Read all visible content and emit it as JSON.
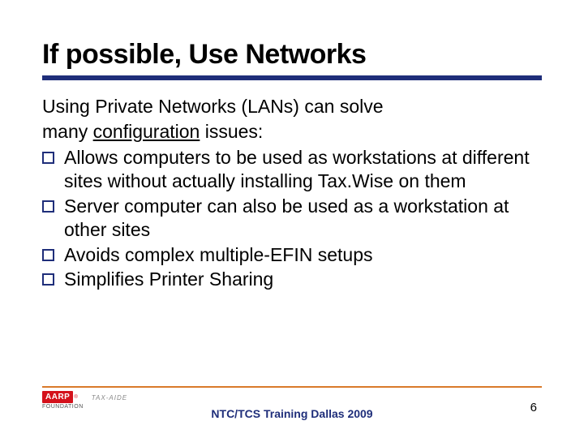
{
  "title": "If possible, Use Networks",
  "intro_line1": "Using Private Networks (LANs) can solve",
  "intro_line2_pre": "many ",
  "intro_line2_underlined": "configuration",
  "intro_line2_post": " issues:",
  "bullets": [
    "Allows computers to be used as workstations at different sites without actually installing Tax.Wise on them",
    "Server computer can also be used as a workstation at other sites",
    "Avoids complex multiple-EFIN setups",
    "Simplifies Printer Sharing"
  ],
  "logo": {
    "mark": "AARP",
    "foundation": "FOUNDATION",
    "taxaide": "TAX-AIDE"
  },
  "footer_center": "NTC/TCS Training Dallas 2009",
  "page_number": "6",
  "colors": {
    "title_rule": "#1f2e7a",
    "bullet_border": "#1f2e7a",
    "footer_rule": "#d97a2a",
    "aarp_red": "#d4111b",
    "footer_text": "#1f2e7a"
  },
  "fonts": {
    "title_size": 34,
    "body_size": 23,
    "footer_size": 14
  }
}
